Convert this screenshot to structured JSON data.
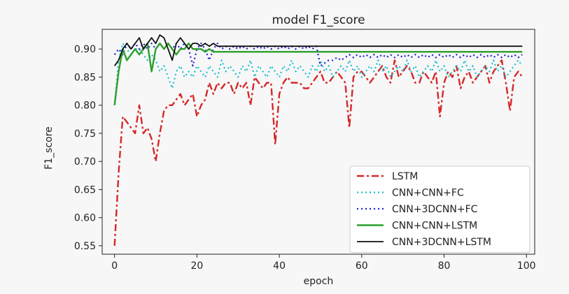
{
  "chart_data": {
    "type": "line",
    "title": "model F1_score",
    "xlabel": "epoch",
    "ylabel": "F1_score",
    "xlim": [
      -3,
      102
    ],
    "ylim": [
      0.535,
      0.935
    ],
    "xticks": [
      0,
      20,
      40,
      60,
      80,
      100
    ],
    "yticks": [
      0.55,
      0.6,
      0.65,
      0.7,
      0.75,
      0.8,
      0.85,
      0.9
    ],
    "xtick_labels": [
      "0",
      "20",
      "40",
      "60",
      "80",
      "100"
    ],
    "ytick_labels": [
      "0.55",
      "0.60",
      "0.65",
      "0.70",
      "0.75",
      "0.80",
      "0.85",
      "0.90"
    ],
    "grid": false,
    "legend_position": "lower-right",
    "x": [
      0,
      1,
      2,
      3,
      4,
      5,
      6,
      7,
      8,
      9,
      10,
      11,
      12,
      13,
      14,
      15,
      16,
      17,
      18,
      19,
      20,
      21,
      22,
      23,
      24,
      25,
      26,
      27,
      28,
      29,
      30,
      31,
      32,
      33,
      34,
      35,
      36,
      37,
      38,
      39,
      40,
      41,
      42,
      43,
      44,
      45,
      46,
      47,
      48,
      49,
      50,
      51,
      52,
      53,
      54,
      55,
      56,
      57,
      58,
      59,
      60,
      61,
      62,
      63,
      64,
      65,
      66,
      67,
      68,
      69,
      70,
      71,
      72,
      73,
      74,
      75,
      76,
      77,
      78,
      79,
      80,
      81,
      82,
      83,
      84,
      85,
      86,
      87,
      88,
      89,
      90,
      91,
      92,
      93,
      94,
      95,
      96,
      97,
      98,
      99
    ],
    "series": [
      {
        "name": "LSTM",
        "color": "#d62728",
        "dash": "10,4,3,4",
        "width": 2.4,
        "values": [
          0.55,
          0.68,
          0.78,
          0.77,
          0.76,
          0.75,
          0.8,
          0.75,
          0.76,
          0.74,
          0.7,
          0.75,
          0.79,
          0.8,
          0.8,
          0.81,
          0.82,
          0.8,
          0.81,
          0.82,
          0.78,
          0.8,
          0.81,
          0.84,
          0.82,
          0.84,
          0.83,
          0.84,
          0.84,
          0.82,
          0.84,
          0.83,
          0.84,
          0.8,
          0.85,
          0.84,
          0.83,
          0.84,
          0.84,
          0.73,
          0.82,
          0.84,
          0.85,
          0.84,
          0.84,
          0.84,
          0.83,
          0.83,
          0.84,
          0.85,
          0.86,
          0.84,
          0.84,
          0.85,
          0.86,
          0.85,
          0.84,
          0.76,
          0.85,
          0.86,
          0.86,
          0.85,
          0.84,
          0.85,
          0.86,
          0.87,
          0.85,
          0.84,
          0.88,
          0.85,
          0.86,
          0.87,
          0.86,
          0.84,
          0.84,
          0.86,
          0.85,
          0.84,
          0.86,
          0.78,
          0.84,
          0.86,
          0.85,
          0.87,
          0.83,
          0.85,
          0.86,
          0.84,
          0.85,
          0.86,
          0.87,
          0.84,
          0.86,
          0.87,
          0.88,
          0.84,
          0.79,
          0.85,
          0.86,
          0.85
        ]
      },
      {
        "name": "CNN+CNN+FC",
        "color": "#17becf",
        "dash": "2,4",
        "width": 2.2,
        "values": [
          0.8,
          0.88,
          0.91,
          0.9,
          0.89,
          0.9,
          0.9,
          0.89,
          0.88,
          0.89,
          0.88,
          0.86,
          0.87,
          0.85,
          0.83,
          0.86,
          0.87,
          0.85,
          0.86,
          0.85,
          0.87,
          0.86,
          0.85,
          0.87,
          0.86,
          0.85,
          0.88,
          0.86,
          0.87,
          0.86,
          0.85,
          0.87,
          0.86,
          0.88,
          0.85,
          0.87,
          0.86,
          0.85,
          0.87,
          0.86,
          0.85,
          0.87,
          0.86,
          0.88,
          0.86,
          0.87,
          0.86,
          0.85,
          0.87,
          0.86,
          0.88,
          0.86,
          0.87,
          0.85,
          0.86,
          0.87,
          0.86,
          0.88,
          0.86,
          0.87,
          0.85,
          0.86,
          0.87,
          0.86,
          0.88,
          0.86,
          0.87,
          0.85,
          0.86,
          0.87,
          0.86,
          0.88,
          0.86,
          0.87,
          0.85,
          0.86,
          0.87,
          0.86,
          0.88,
          0.86,
          0.87,
          0.85,
          0.86,
          0.87,
          0.86,
          0.88,
          0.86,
          0.87,
          0.85,
          0.86,
          0.87,
          0.86,
          0.88,
          0.86,
          0.87,
          0.85,
          0.86,
          0.87,
          0.88,
          0.87
        ]
      },
      {
        "name": "CNN+3DCNN+FC",
        "color": "#1f1fd6",
        "dash": "2,4",
        "width": 2.2,
        "values": [
          0.89,
          0.9,
          0.89,
          0.91,
          0.9,
          0.91,
          0.9,
          0.91,
          0.9,
          0.91,
          0.9,
          0.91,
          0.9,
          0.91,
          0.9,
          0.91,
          0.9,
          0.91,
          0.9,
          0.87,
          0.9,
          0.91,
          0.9,
          0.88,
          0.9,
          0.91,
          0.9,
          0.905,
          0.9,
          0.905,
          0.9,
          0.905,
          0.9,
          0.905,
          0.9,
          0.905,
          0.9,
          0.905,
          0.9,
          0.905,
          0.9,
          0.905,
          0.9,
          0.905,
          0.9,
          0.905,
          0.9,
          0.905,
          0.9,
          0.905,
          0.87,
          0.875,
          0.88,
          0.88,
          0.885,
          0.88,
          0.885,
          0.89,
          0.885,
          0.89,
          0.885,
          0.89,
          0.885,
          0.89,
          0.885,
          0.89,
          0.885,
          0.89,
          0.885,
          0.89,
          0.885,
          0.89,
          0.885,
          0.89,
          0.885,
          0.89,
          0.885,
          0.89,
          0.885,
          0.89,
          0.885,
          0.89,
          0.885,
          0.89,
          0.885,
          0.89,
          0.885,
          0.89,
          0.885,
          0.89,
          0.885,
          0.89,
          0.885,
          0.89,
          0.885,
          0.89,
          0.885,
          0.89,
          0.885,
          0.89
        ]
      },
      {
        "name": "CNN+CNN+LSTM",
        "color": "#2ca02c",
        "dash": "",
        "width": 2.4,
        "values": [
          0.8,
          0.86,
          0.9,
          0.88,
          0.89,
          0.9,
          0.89,
          0.9,
          0.91,
          0.86,
          0.9,
          0.91,
          0.9,
          0.91,
          0.9,
          0.89,
          0.9,
          0.9,
          0.91,
          0.9,
          0.9,
          0.9,
          0.895,
          0.9,
          0.895,
          0.895,
          0.895,
          0.895,
          0.895,
          0.895,
          0.895,
          0.895,
          0.895,
          0.895,
          0.895,
          0.895,
          0.895,
          0.895,
          0.895,
          0.895,
          0.895,
          0.895,
          0.895,
          0.895,
          0.895,
          0.895,
          0.895,
          0.895,
          0.895,
          0.895,
          0.895,
          0.895,
          0.895,
          0.895,
          0.895,
          0.895,
          0.895,
          0.895,
          0.895,
          0.895,
          0.895,
          0.895,
          0.895,
          0.895,
          0.895,
          0.895,
          0.895,
          0.895,
          0.895,
          0.895,
          0.895,
          0.895,
          0.895,
          0.895,
          0.895,
          0.895,
          0.895,
          0.895,
          0.895,
          0.895,
          0.895,
          0.895,
          0.895,
          0.895,
          0.895,
          0.895,
          0.895,
          0.895,
          0.895,
          0.895,
          0.895,
          0.895,
          0.895,
          0.895,
          0.895,
          0.895,
          0.895,
          0.895,
          0.895,
          0.895
        ]
      },
      {
        "name": "CNN+3DCNN+LSTM",
        "color": "#111111",
        "dash": "",
        "width": 1.8,
        "values": [
          0.87,
          0.88,
          0.9,
          0.91,
          0.9,
          0.91,
          0.92,
          0.9,
          0.91,
          0.92,
          0.91,
          0.925,
          0.92,
          0.9,
          0.88,
          0.91,
          0.92,
          0.91,
          0.9,
          0.91,
          0.91,
          0.905,
          0.91,
          0.905,
          0.91,
          0.905,
          0.905,
          0.905,
          0.905,
          0.905,
          0.905,
          0.905,
          0.905,
          0.905,
          0.905,
          0.905,
          0.905,
          0.905,
          0.905,
          0.905,
          0.905,
          0.905,
          0.905,
          0.905,
          0.905,
          0.905,
          0.905,
          0.905,
          0.905,
          0.905,
          0.905,
          0.905,
          0.905,
          0.905,
          0.905,
          0.905,
          0.905,
          0.905,
          0.905,
          0.905,
          0.905,
          0.905,
          0.905,
          0.905,
          0.905,
          0.905,
          0.905,
          0.905,
          0.905,
          0.905,
          0.905,
          0.905,
          0.905,
          0.905,
          0.905,
          0.905,
          0.905,
          0.905,
          0.905,
          0.905,
          0.905,
          0.905,
          0.905,
          0.905,
          0.905,
          0.905,
          0.905,
          0.905,
          0.905,
          0.905,
          0.905,
          0.905,
          0.905,
          0.905,
          0.905,
          0.905,
          0.905,
          0.905,
          0.905,
          0.905
        ]
      }
    ]
  }
}
